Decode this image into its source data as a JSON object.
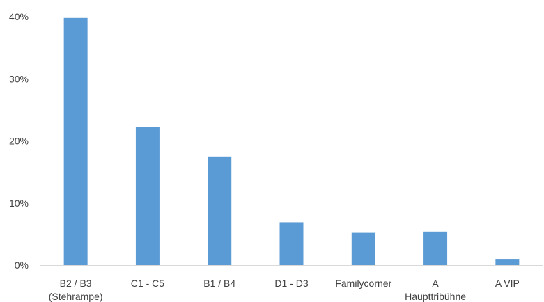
{
  "chart_data": {
    "type": "bar",
    "title": "",
    "xlabel": "",
    "ylabel": "",
    "categories": [
      [
        "B2 / B3",
        "(Stehrampe)"
      ],
      [
        "C1 - C5"
      ],
      [
        "B1 / B4"
      ],
      [
        "D1 - D3"
      ],
      [
        "Familycorner"
      ],
      [
        "A",
        "Haupttribühne"
      ],
      [
        "A VIP"
      ]
    ],
    "values": [
      39.8,
      22.2,
      17.5,
      6.9,
      5.2,
      5.4,
      1.0
    ],
    "ylim": [
      0,
      40
    ],
    "yticks": [
      0,
      10,
      20,
      30,
      40
    ],
    "ytick_labels": [
      "0%",
      "10%",
      "20%",
      "30%",
      "40%"
    ],
    "bar_color": "#5B9BD5",
    "grid": false,
    "legend": "none"
  }
}
